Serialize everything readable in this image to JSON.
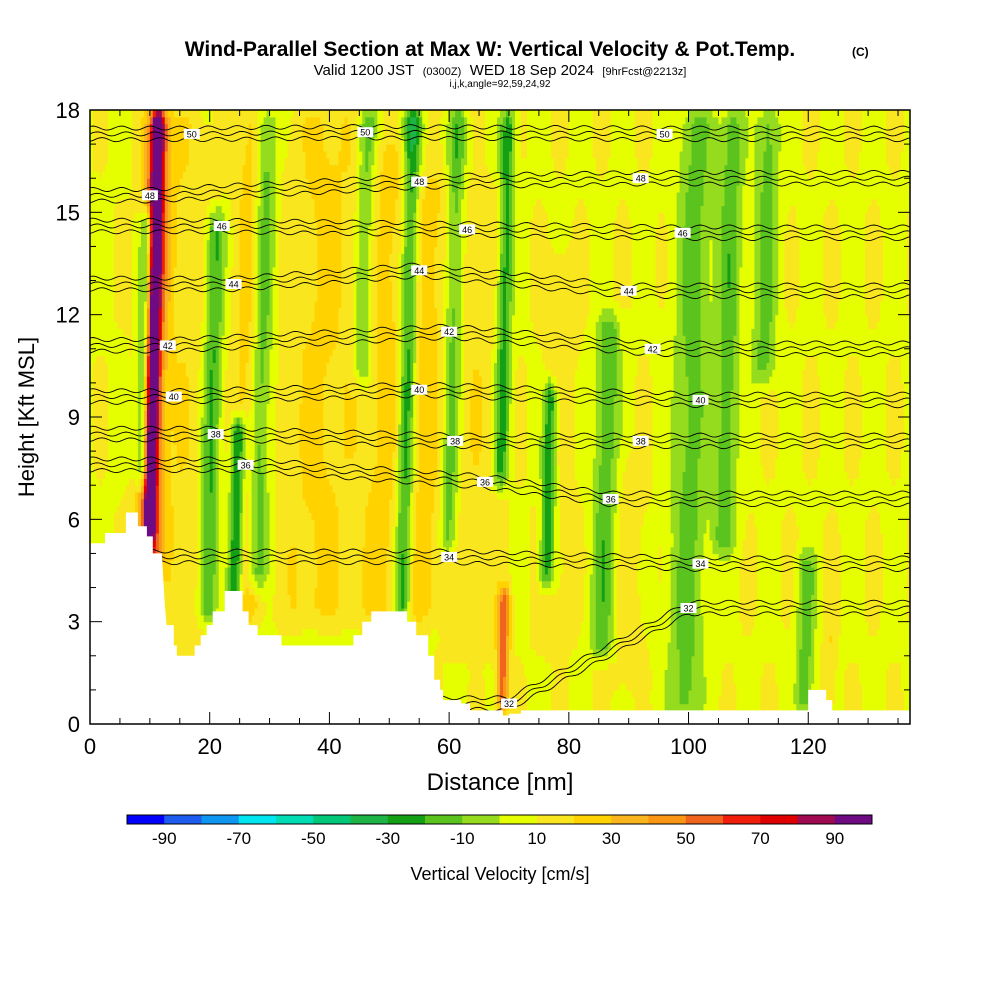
{
  "chart_data": {
    "type": "heatmap",
    "title": "Wind-Parallel Section at Max W: Vertical Velocity & Pot.Temp.",
    "title_mark": "(C)",
    "subtitle_parts": [
      "Valid 1200 JST",
      "(0300Z)",
      "WED 18 Sep 2024",
      "[9hrFcst@2213z]"
    ],
    "subtitle2": "i,j,k,angle=92,59,24,92",
    "xlabel": "Distance [nm]",
    "ylabel": "Height [Kft MSL]",
    "xlim": [
      0,
      137
    ],
    "ylim": [
      0,
      18
    ],
    "x_ticks": [
      "0",
      "20",
      "40",
      "60",
      "80",
      "100",
      "120"
    ],
    "y_ticks": [
      "0",
      "3",
      "6",
      "9",
      "12",
      "15",
      "18"
    ],
    "colorbar": {
      "label": "Vertical Velocity [cm/s]",
      "tick_labels": [
        "-90",
        "-70",
        "-50",
        "-30",
        "-10",
        "10",
        "30",
        "50",
        "70",
        "90"
      ],
      "levels": [
        -100,
        -90,
        -80,
        -70,
        -60,
        -50,
        -40,
        -30,
        -20,
        -10,
        0,
        10,
        20,
        30,
        40,
        50,
        60,
        70,
        80,
        90,
        100
      ],
      "colors": [
        "#0000ff",
        "#1e5cf0",
        "#0f96f0",
        "#00e6f0",
        "#00dcb4",
        "#00c878",
        "#1eb446",
        "#14a014",
        "#5ac31e",
        "#96dc1e",
        "#e6ff00",
        "#fae61e",
        "#ffd200",
        "#fab41e",
        "#fa9614",
        "#f0641e",
        "#f01e0a",
        "#e10000",
        "#a00a50",
        "#6e0a82"
      ]
    },
    "velocity_features": [
      {
        "x": 10,
        "w": 1.0,
        "value": 90,
        "zmin": 5.2,
        "zmax": 18
      },
      {
        "x": 10,
        "w": 2.2,
        "value": 55,
        "zmin": 4.5,
        "zmax": 18
      },
      {
        "x": 8.5,
        "w": 1.2,
        "value": -35,
        "zmin": 7,
        "zmax": 15
      },
      {
        "x": 15,
        "w": 4,
        "value": 18,
        "zmin": 2,
        "zmax": 18
      },
      {
        "x": 20,
        "w": 1.5,
        "value": -22,
        "zmin": 3,
        "zmax": 15
      },
      {
        "x": 24.5,
        "w": 1.2,
        "value": -40,
        "zmin": 3,
        "zmax": 9
      },
      {
        "x": 26,
        "w": 2.5,
        "value": 28,
        "zmin": 3,
        "zmax": 18
      },
      {
        "x": 28,
        "w": 1.8,
        "value": -22,
        "zmin": 4,
        "zmax": 18
      },
      {
        "x": 38,
        "w": 6,
        "value": 22,
        "zmin": 3,
        "zmax": 18
      },
      {
        "x": 45,
        "w": 1.5,
        "value": -18,
        "zmin": 10,
        "zmax": 18
      },
      {
        "x": 50,
        "w": 5,
        "value": 24,
        "zmin": 3,
        "zmax": 17
      },
      {
        "x": 52.5,
        "w": 1.5,
        "value": -35,
        "zmin": 3,
        "zmax": 18
      },
      {
        "x": 56,
        "w": 3,
        "value": 22,
        "zmin": 3,
        "zmax": 16
      },
      {
        "x": 60,
        "w": 1.5,
        "value": -18,
        "zmin": 5,
        "zmax": 18
      },
      {
        "x": 64,
        "w": 4,
        "value": 18,
        "zmin": 2,
        "zmax": 16
      },
      {
        "x": 68.5,
        "w": 1.3,
        "value": -25,
        "zmin": 7,
        "zmax": 18
      },
      {
        "x": 69.5,
        "w": 1.0,
        "value": 55,
        "zmin": 0.3,
        "zmax": 4
      },
      {
        "x": 76.5,
        "w": 1.2,
        "value": -30,
        "zmin": 4,
        "zmax": 10
      },
      {
        "x": 78,
        "w": 3,
        "value": 15,
        "zmin": 2,
        "zmax": 14
      },
      {
        "x": 86,
        "w": 2,
        "value": -18,
        "zmin": 2,
        "zmax": 12
      },
      {
        "x": 90,
        "w": 3,
        "value": 15,
        "zmin": 1,
        "zmax": 8
      },
      {
        "x": 100,
        "w": 3,
        "value": -14,
        "zmin": 0.3,
        "zmax": 18
      },
      {
        "x": 106,
        "w": 2,
        "value": -16,
        "zmin": 5,
        "zmax": 18
      },
      {
        "x": 112,
        "w": 2,
        "value": -14,
        "zmin": 10,
        "zmax": 18
      },
      {
        "x": 120,
        "w": 1.5,
        "value": -16,
        "zmin": 0.3,
        "zmax": 5
      },
      {
        "x": 124,
        "w": 1,
        "value": 20,
        "zmin": 0.3,
        "zmax": 3
      }
    ],
    "background_value": 9,
    "terrain": [
      [
        0,
        5.3
      ],
      [
        2.5,
        5.3
      ],
      [
        2.5,
        5.6
      ],
      [
        6,
        5.6
      ],
      [
        6,
        6.2
      ],
      [
        8,
        6.2
      ],
      [
        8,
        5.8
      ],
      [
        9.5,
        5.8
      ],
      [
        9.5,
        5.5
      ],
      [
        10.5,
        5.5
      ],
      [
        10.5,
        5.0
      ],
      [
        12,
        5.0
      ],
      [
        12.5,
        3.5
      ],
      [
        12.8,
        2.9
      ],
      [
        14,
        2.9
      ],
      [
        14,
        2.3
      ],
      [
        14.5,
        2.3
      ],
      [
        14.5,
        2.0
      ],
      [
        17.5,
        2.0
      ],
      [
        17.5,
        2.3
      ],
      [
        18.5,
        2.3
      ],
      [
        18.5,
        2.6
      ],
      [
        19.5,
        2.6
      ],
      [
        19.5,
        2.9
      ],
      [
        20.5,
        2.9
      ],
      [
        20.5,
        3.3
      ],
      [
        22.5,
        3.3
      ],
      [
        22.5,
        3.9
      ],
      [
        25.5,
        3.9
      ],
      [
        25.5,
        3.3
      ],
      [
        26.5,
        3.3
      ],
      [
        26.5,
        2.9
      ],
      [
        28,
        2.9
      ],
      [
        28,
        2.6
      ],
      [
        32,
        2.6
      ],
      [
        32,
        2.3
      ],
      [
        44,
        2.3
      ],
      [
        44,
        2.6
      ],
      [
        45.5,
        2.6
      ],
      [
        45.5,
        3.0
      ],
      [
        47,
        3.0
      ],
      [
        47,
        3.3
      ],
      [
        53,
        3.3
      ],
      [
        53,
        3.0
      ],
      [
        54.5,
        3.0
      ],
      [
        54.5,
        2.6
      ],
      [
        56.5,
        2.6
      ],
      [
        56.5,
        2.0
      ],
      [
        57.5,
        2.0
      ],
      [
        57.5,
        1.3
      ],
      [
        58.5,
        1.3
      ],
      [
        58.5,
        1.0
      ],
      [
        59,
        1.0
      ],
      [
        59,
        0.7
      ],
      [
        62,
        0.7
      ],
      [
        62,
        0.6
      ],
      [
        63.5,
        0.6
      ],
      [
        63.5,
        0.4
      ],
      [
        69,
        0.4
      ],
      [
        69,
        0.25
      ],
      [
        70,
        0.25
      ],
      [
        70,
        0.3
      ],
      [
        72,
        0.3
      ],
      [
        72,
        0.4
      ],
      [
        120,
        0.4
      ],
      [
        120,
        1.0
      ],
      [
        123,
        1.0
      ],
      [
        123,
        0.7
      ],
      [
        124,
        0.7
      ],
      [
        124,
        0.4
      ],
      [
        137,
        0.4
      ]
    ],
    "theta_labels": [
      {
        "value": "50",
        "x": 17,
        "z": 17.3
      },
      {
        "value": "50",
        "x": 46,
        "z": 17.35
      },
      {
        "value": "50",
        "x": 96,
        "z": 17.3
      },
      {
        "value": "48",
        "x": 10,
        "z": 15.5
      },
      {
        "value": "48",
        "x": 55,
        "z": 15.9
      },
      {
        "value": "48",
        "x": 92,
        "z": 16.0
      },
      {
        "value": "46",
        "x": 22,
        "z": 14.6
      },
      {
        "value": "46",
        "x": 63,
        "z": 14.5
      },
      {
        "value": "46",
        "x": 99,
        "z": 14.4
      },
      {
        "value": "44",
        "x": 24,
        "z": 12.9
      },
      {
        "value": "44",
        "x": 55,
        "z": 13.3
      },
      {
        "value": "44",
        "x": 90,
        "z": 12.7
      },
      {
        "value": "42",
        "x": 13,
        "z": 11.1
      },
      {
        "value": "42",
        "x": 60,
        "z": 11.5
      },
      {
        "value": "42",
        "x": 94,
        "z": 11.0
      },
      {
        "value": "40",
        "x": 14,
        "z": 9.6
      },
      {
        "value": "40",
        "x": 55,
        "z": 9.8
      },
      {
        "value": "40",
        "x": 102,
        "z": 9.5
      },
      {
        "value": "38",
        "x": 21,
        "z": 8.5
      },
      {
        "value": "38",
        "x": 61,
        "z": 8.3
      },
      {
        "value": "38",
        "x": 92,
        "z": 8.3
      },
      {
        "value": "36",
        "x": 26,
        "z": 7.6
      },
      {
        "value": "36",
        "x": 66,
        "z": 7.1
      },
      {
        "value": "36",
        "x": 87,
        "z": 6.6
      },
      {
        "value": "34",
        "x": 60,
        "z": 4.9
      },
      {
        "value": "34",
        "x": 102,
        "z": 4.7
      },
      {
        "value": "32",
        "x": 100,
        "z": 3.4
      },
      {
        "value": "32",
        "x": 70,
        "z": 0.6
      }
    ]
  }
}
